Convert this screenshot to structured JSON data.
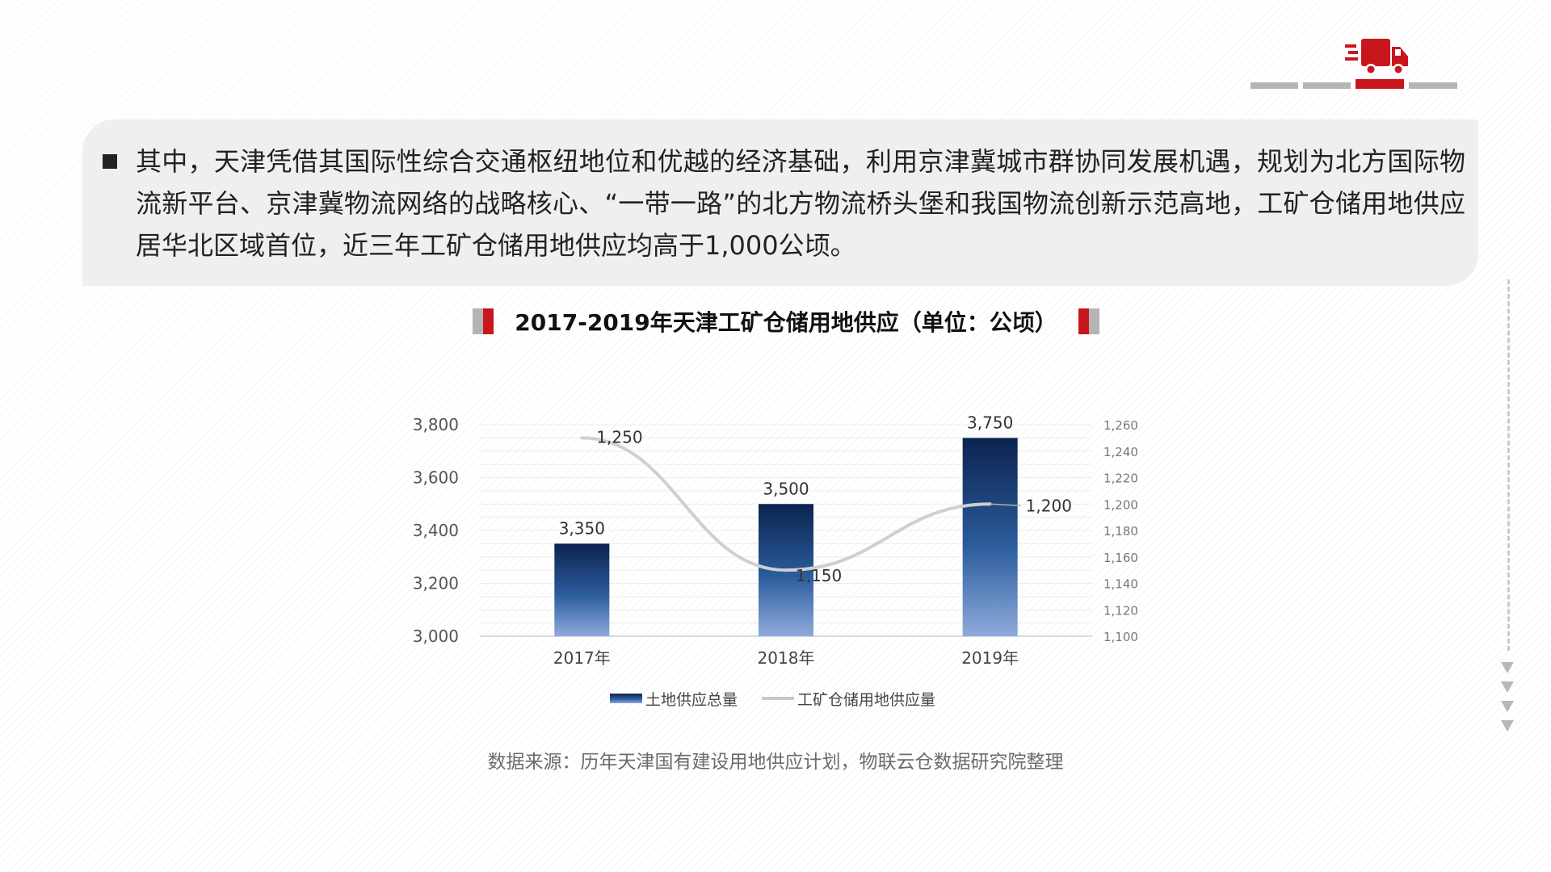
{
  "intro": {
    "text": "其中，天津凭借其国际性综合交通枢纽地位和优越的经济基础，利用京津冀城市群协同发展机遇，规划为北方国际物流新平台、京津冀物流网络的战略核心、“一带一路”的北方物流桥头堡和我国物流创新示范高地，工矿仓储用地供应居华北区域首位，近三年工矿仓储用地供应均高于1,000公顷。"
  },
  "logo": {
    "icon": "delivery-truck-icon",
    "accent": "#c8161d"
  },
  "chart_data": {
    "type": "bar",
    "title": "2017-2019年天津工矿仓储用地供应（单位：公顷）",
    "categories": [
      "2017年",
      "2018年",
      "2019年"
    ],
    "series": [
      {
        "name": "土地供应总量",
        "type": "bar",
        "axis": "left",
        "values": [
          3350,
          3500,
          3750
        ],
        "labels": [
          "3,350",
          "3,500",
          "3,750"
        ]
      },
      {
        "name": "工矿仓储用地供应量",
        "type": "line",
        "axis": "right",
        "values": [
          1250,
          1150,
          1200
        ],
        "labels": [
          "1,250",
          "1,150",
          "1,200"
        ]
      }
    ],
    "y_left": {
      "min": 3000,
      "max": 3800,
      "ticks": [
        "3,000",
        "3,200",
        "3,400",
        "3,600",
        "3,800"
      ]
    },
    "y_right": {
      "min": 1100,
      "max": 1260,
      "ticks": [
        "1,100",
        "1,120",
        "1,140",
        "1,160",
        "1,180",
        "1,200",
        "1,220",
        "1,240",
        "1,260"
      ]
    },
    "grid": true,
    "legend": "bottom",
    "colors": {
      "bar_top": "#0c2350",
      "bar_mid": "#2b5d9c",
      "bar_bottom": "#8faadc",
      "line": "#c8c8c8"
    }
  },
  "source": "数据来源：历年天津国有建设用地供应计划，物联云仓数据研究院整理"
}
